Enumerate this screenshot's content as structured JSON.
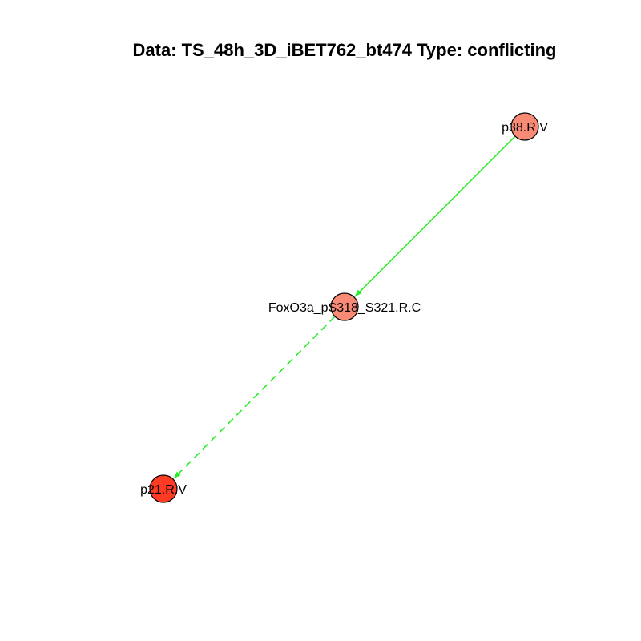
{
  "title": "Data: TS_48h_3D_iBET762_bt474 Type: conflicting",
  "colors": {
    "edge": "#22ee22",
    "node_outline": "#000000",
    "node_light": "#f98a76",
    "node_dark": "#ff3b24"
  },
  "nodes": [
    {
      "id": "p38",
      "label": "p38.R.V",
      "color": "node_light"
    },
    {
      "id": "foxo3a",
      "label": "FoxO3a_pS318_S321.R.C",
      "color": "node_light"
    },
    {
      "id": "p21",
      "label": "p21.R.V",
      "color": "node_dark"
    }
  ],
  "edges": [
    {
      "from": "p38",
      "to": "foxo3a",
      "style": "solid"
    },
    {
      "from": "foxo3a",
      "to": "p21",
      "style": "dashed"
    }
  ]
}
